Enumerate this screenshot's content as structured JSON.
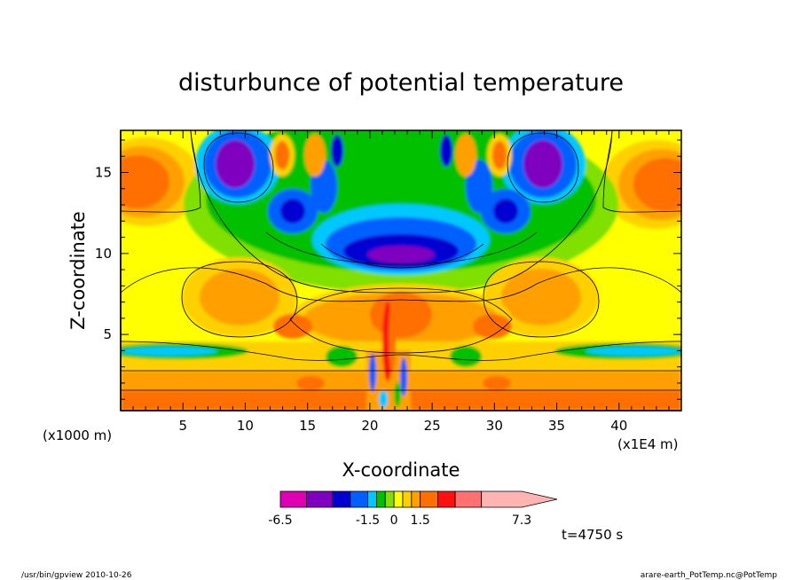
{
  "chart_data": {
    "type": "heatmap",
    "title": "disturbunce of potential temperature",
    "xlabel": "X-coordinate",
    "ylabel": "Z-coordinate",
    "x_unit_left": "(x1000 m)",
    "x_unit_right": "(x1E4 m)",
    "xlim": [
      0,
      45
    ],
    "ylim": [
      0.3,
      17.6
    ],
    "x_ticks": [
      5,
      10,
      15,
      20,
      25,
      30,
      35,
      40
    ],
    "y_ticks": [
      5,
      10,
      15
    ],
    "colorbar": {
      "levels": [
        -6.5,
        -5.0,
        -3.5,
        -2.5,
        -1.5,
        -1.0,
        -0.5,
        0.0,
        0.5,
        1.0,
        1.5,
        2.5,
        3.5,
        5.0,
        7.3
      ],
      "colors": [
        "#e000b4",
        "#8000c0",
        "#0000d0",
        "#0060ff",
        "#00c8ff",
        "#00c000",
        "#80e000",
        "#ffff00",
        "#ffd000",
        "#ffa000",
        "#ff7000",
        "#ff1010",
        "#ff7070",
        "#ffb4b4"
      ],
      "tick_labels": [
        "-6.5",
        "-1.5",
        "0",
        "1.5",
        "7.3"
      ],
      "extend": "max"
    },
    "annotation": "t=4750 s"
  },
  "footer": {
    "left": "/usr/bin/gpview   2010-10-26",
    "right": "arare-earth_PotTemp.nc@PotTemp"
  }
}
